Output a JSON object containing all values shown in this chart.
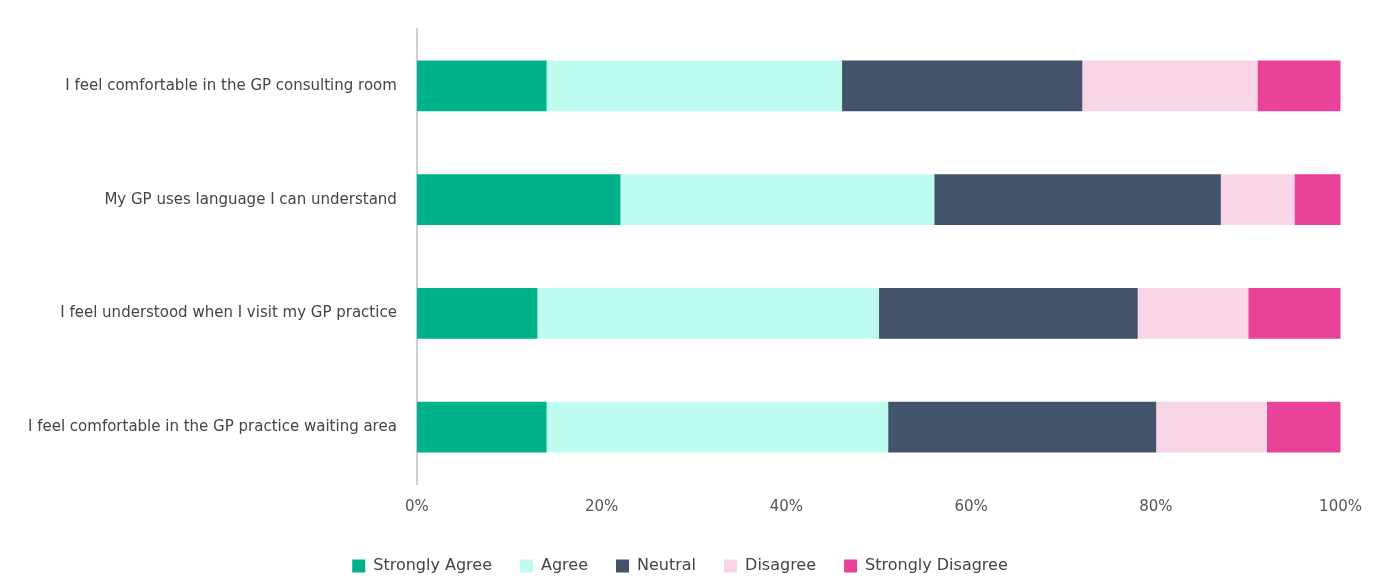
{
  "chart_data": {
    "type": "bar",
    "orientation": "horizontal",
    "stacked": true,
    "categories": [
      "I feel comfortable in the GP consulting room",
      "My GP uses language I can understand",
      "I feel understood when I visit my GP practice",
      "I feel comfortable in the GP practice waiting area"
    ],
    "series": [
      {
        "name": "Strongly Agree",
        "color": "#00b28a",
        "values": [
          14,
          22,
          13,
          14
        ]
      },
      {
        "name": "Agree",
        "color": "#bdfcef",
        "values": [
          32,
          34,
          37,
          37
        ]
      },
      {
        "name": "Neutral",
        "color": "#43536b",
        "values": [
          26,
          31,
          28,
          29
        ]
      },
      {
        "name": "Disagree",
        "color": "#f9d6e7",
        "values": [
          19,
          8,
          12,
          12
        ]
      },
      {
        "name": "Strongly Disagree",
        "color": "#e84398",
        "values": [
          9,
          5,
          10,
          8
        ]
      }
    ],
    "xlim": [
      0,
      100
    ],
    "xticks": [
      {
        "value": 0,
        "label": "0%"
      },
      {
        "value": 20,
        "label": "20%"
      },
      {
        "value": 40,
        "label": "40%"
      },
      {
        "value": 60,
        "label": "60%"
      },
      {
        "value": 80,
        "label": "80%"
      },
      {
        "value": 100,
        "label": "100%"
      }
    ],
    "grid": false,
    "legend": "bottom"
  }
}
